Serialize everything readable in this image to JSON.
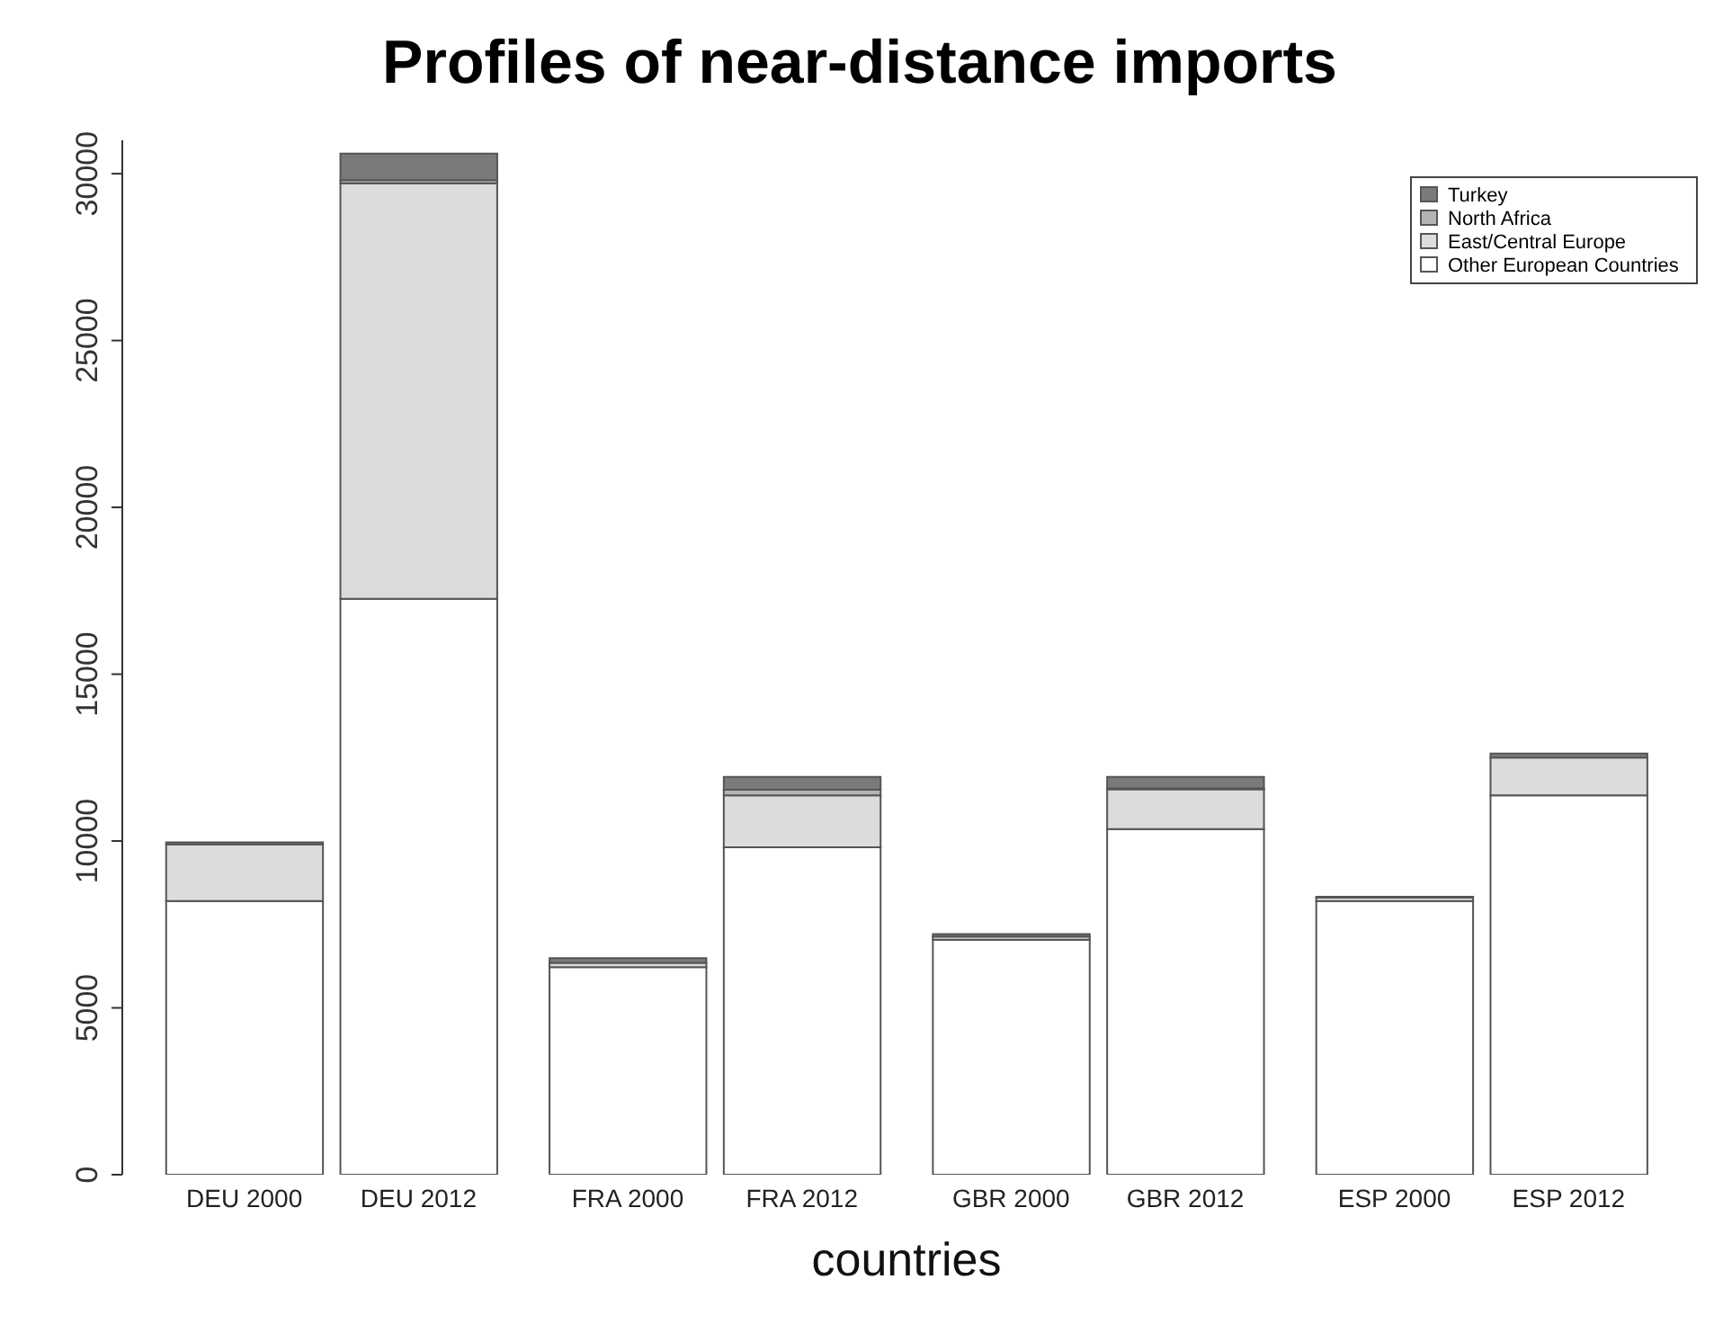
{
  "chart_data": {
    "type": "bar",
    "title": "Profiles of near-distance imports",
    "xlabel": "countries",
    "stacked": true,
    "categories": [
      "DEU 2000",
      "DEU 2012",
      "FRA 2000",
      "FRA 2012",
      "GBR 2000",
      "GBR 2012",
      "ESP 2000",
      "ESP 2012"
    ],
    "series": [
      {
        "name": "Other European Countries",
        "color": "#ffffff",
        "values": [
          8200,
          17260,
          6220,
          9810,
          7040,
          10360,
          8200,
          11370
        ]
      },
      {
        "name": "East/Central Europe",
        "color": "#dcdcdc",
        "values": [
          1700,
          12450,
          130,
          1560,
          100,
          1190,
          100,
          1130
        ]
      },
      {
        "name": "North Africa",
        "color": "#b4b4b4",
        "values": [
          null,
          100,
          null,
          170,
          null,
          30,
          null,
          null
        ]
      },
      {
        "name": "Turkey",
        "color": "#7a7a7a",
        "values": [
          60,
          790,
          140,
          380,
          70,
          340,
          30,
          120
        ]
      }
    ],
    "ylim": [
      0,
      31000
    ],
    "yticks": [
      0,
      5000,
      10000,
      15000,
      20000,
      25000,
      30000
    ],
    "grid": false,
    "legend": "top right"
  }
}
